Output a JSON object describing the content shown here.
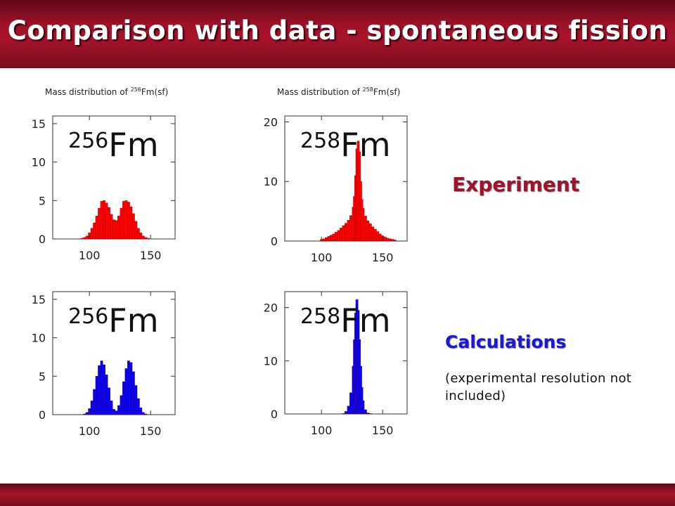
{
  "slide": {
    "title": "Comparison with data - spontaneous fission",
    "experiment_label": "Experiment",
    "calculations_label": "Calculations",
    "calculations_note": "(experimental resolution not included)"
  },
  "colors": {
    "header": "#a8142c",
    "experiment_bars": "#ff0000",
    "calculation_bars": "#0000ff",
    "experiment_label": "#a3122b",
    "calculation_label": "#1a1ad6"
  },
  "chart_data": [
    {
      "type": "bar",
      "title": "Mass distribution of 256Fm(sf)",
      "title_parts": {
        "prefix": "Mass distribution of ",
        "mass": "256",
        "suffix": "Fm(sf)"
      },
      "isotope": {
        "mass": "256",
        "symbol": "Fm"
      },
      "role": "Experiment",
      "color": "#ff0000",
      "xlim": [
        70,
        170
      ],
      "ylim": [
        0,
        16
      ],
      "xticks": [
        100,
        150
      ],
      "yticks": [
        0,
        5,
        10,
        15
      ],
      "x": [
        94,
        96,
        98,
        100,
        102,
        104,
        106,
        108,
        110,
        112,
        114,
        116,
        118,
        120,
        122,
        124,
        126,
        128,
        130,
        132,
        134,
        136,
        138,
        140,
        142,
        144,
        146,
        148,
        150,
        152,
        154,
        156,
        158,
        160
      ],
      "values": [
        0.1,
        0.2,
        0.4,
        0.8,
        1.4,
        2.1,
        3.0,
        4.0,
        4.9,
        5.0,
        4.7,
        4.1,
        3.2,
        2.5,
        2.4,
        3.0,
        4.0,
        4.9,
        5.0,
        4.8,
        4.2,
        3.3,
        2.3,
        1.4,
        0.8,
        0.4,
        0.2,
        0.1,
        0,
        0,
        0,
        0,
        0,
        0
      ]
    },
    {
      "type": "bar",
      "title": "Mass distribution of 258Fm(sf)",
      "title_parts": {
        "prefix": "Mass distribution of ",
        "mass": "258",
        "suffix": "Fm(sf)"
      },
      "isotope": {
        "mass": "258",
        "symbol": "Fm"
      },
      "role": "Experiment",
      "color": "#ff0000",
      "xlim": [
        70,
        170
      ],
      "ylim": [
        0,
        21
      ],
      "xticks": [
        100,
        150
      ],
      "yticks": [
        0,
        10,
        20
      ],
      "x": [
        100,
        102,
        104,
        106,
        108,
        110,
        112,
        114,
        116,
        118,
        120,
        122,
        124,
        126,
        127,
        128,
        129,
        130,
        131,
        132,
        133,
        134,
        136,
        138,
        140,
        142,
        144,
        146,
        148,
        150,
        152,
        154,
        156,
        158,
        160
      ],
      "values": [
        0.3,
        0.4,
        0.6,
        0.8,
        1.0,
        1.2,
        1.5,
        1.8,
        2.2,
        2.6,
        3.0,
        3.5,
        4.3,
        5.7,
        7.5,
        11.0,
        15.5,
        16.8,
        15.0,
        10.0,
        7.0,
        5.5,
        4.2,
        3.4,
        2.9,
        2.4,
        2.0,
        1.6,
        1.2,
        0.9,
        0.7,
        0.5,
        0.4,
        0.3,
        0.2
      ]
    },
    {
      "type": "bar",
      "isotope": {
        "mass": "256",
        "symbol": "Fm"
      },
      "role": "Calculations",
      "color": "#0000ff",
      "xlim": [
        70,
        170
      ],
      "ylim": [
        0,
        16
      ],
      "xticks": [
        100,
        150
      ],
      "yticks": [
        0,
        5,
        10,
        15
      ],
      "x": [
        96,
        98,
        100,
        102,
        104,
        106,
        108,
        110,
        112,
        114,
        116,
        118,
        120,
        122,
        124,
        126,
        128,
        130,
        132,
        134,
        136,
        138,
        140,
        142,
        144,
        146,
        148
      ],
      "values": [
        0.1,
        0.3,
        0.8,
        1.8,
        3.3,
        5.0,
        6.4,
        7.0,
        6.5,
        5.2,
        3.5,
        1.8,
        0.7,
        0.5,
        1.2,
        2.5,
        4.3,
        6.0,
        7.0,
        6.8,
        5.6,
        3.8,
        2.1,
        0.9,
        0.3,
        0.1,
        0
      ]
    },
    {
      "type": "bar",
      "isotope": {
        "mass": "258",
        "symbol": "Fm"
      },
      "role": "Calculations",
      "color": "#0000ff",
      "xlim": [
        70,
        170
      ],
      "ylim": [
        0,
        23
      ],
      "xticks": [
        100,
        150
      ],
      "yticks": [
        0,
        10,
        20
      ],
      "x": [
        118,
        120,
        122,
        124,
        126,
        127,
        128,
        129,
        130,
        131,
        132,
        133,
        134,
        136,
        138,
        140
      ],
      "values": [
        0.1,
        0.5,
        1.5,
        4.0,
        9.0,
        14.0,
        19.0,
        21.5,
        19.5,
        14.0,
        9.0,
        5.0,
        2.5,
        0.8,
        0.2,
        0.1
      ]
    }
  ]
}
